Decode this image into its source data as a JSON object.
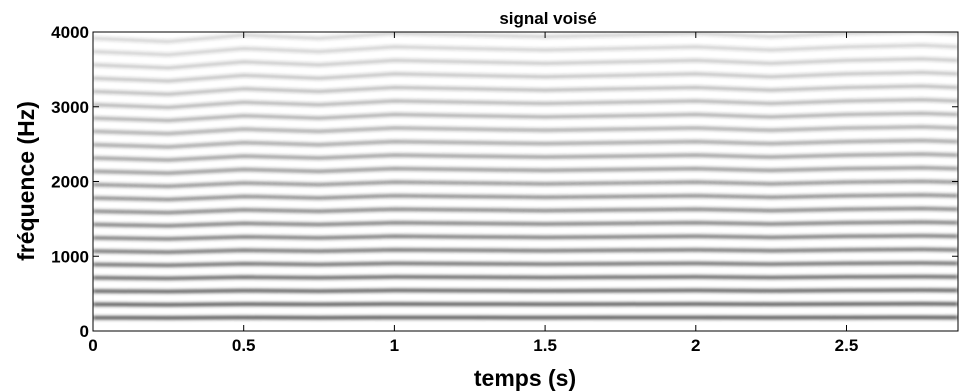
{
  "chart_data": {
    "type": "spectrogram",
    "title": "signal voisé",
    "x_label": "temps   (s)",
    "y_label": "fréquence  (Hz)",
    "x": [
      0,
      0.25,
      0.5,
      0.75,
      1,
      1.25,
      1.5,
      1.75,
      2,
      2.25,
      2.5,
      2.75,
      2.87
    ],
    "f0": [
      178,
      176,
      180,
      178,
      181,
      180,
      179,
      180,
      181,
      179,
      181,
      182,
      181
    ],
    "color": "#2a2a2a",
    "xlim": [
      0,
      2.87
    ],
    "ylim": [
      0,
      4000
    ],
    "xticks": [
      0,
      0.5,
      1,
      1.5,
      2,
      2.5
    ],
    "yticks": [
      0,
      1000,
      2000,
      3000,
      4000
    ]
  }
}
